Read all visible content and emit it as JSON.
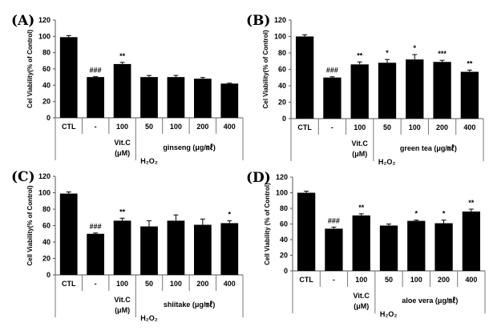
{
  "chart_data": [
    {
      "type": "bar",
      "panel_label": "(A)",
      "ylabel": "Cel Viability(% of Control)",
      "ylim": [
        0,
        120
      ],
      "yticks": [
        0,
        20,
        40,
        60,
        80,
        100,
        120
      ],
      "categories": [
        "CTL",
        "-",
        "100",
        "50",
        "100",
        "200",
        "400"
      ],
      "values": [
        99,
        50,
        66,
        50,
        50,
        48,
        42
      ],
      "errors": [
        2,
        0.5,
        2,
        2,
        2,
        1.5,
        0.5
      ],
      "annotations": [
        "",
        "###",
        "**",
        "",
        "",
        "",
        ""
      ],
      "group_labels": {
        "vitc": "Vit.C",
        "vitc_unit": "(μM)",
        "extract": "ginseng (μg/㎖)",
        "treatment": "H₂O₂"
      },
      "bar_color": "#000000"
    },
    {
      "type": "bar",
      "panel_label": "(B)",
      "ylabel": "Cel Viability(% of Control)",
      "ylim": [
        0,
        120
      ],
      "yticks": [
        0,
        20,
        40,
        60,
        80,
        100,
        120
      ],
      "categories": [
        "CTL",
        "-",
        "100",
        "50",
        "100",
        "200",
        "400"
      ],
      "values": [
        100,
        50,
        66,
        68,
        72,
        69,
        57
      ],
      "errors": [
        2,
        1,
        3,
        4,
        6,
        2,
        2
      ],
      "annotations": [
        "",
        "###",
        "**",
        "*",
        "*",
        "***",
        "**"
      ],
      "group_labels": {
        "vitc": "Vit.C",
        "vitc_unit": "(μM)",
        "extract": "green tea (μg/㎖)",
        "treatment": "H₂O₂"
      },
      "bar_color": "#000000"
    },
    {
      "type": "bar",
      "panel_label": "(C)",
      "ylabel": "Cell Viability(% of Control)",
      "ylim": [
        0,
        120
      ],
      "yticks": [
        0,
        20,
        40,
        60,
        80,
        100,
        120
      ],
      "categories": [
        "CTL",
        "-",
        "100",
        "50",
        "100",
        "200",
        "400"
      ],
      "values": [
        99,
        50,
        66,
        59,
        66,
        61,
        63
      ],
      "errors": [
        2,
        1,
        3,
        7,
        7,
        7,
        3
      ],
      "annotations": [
        "",
        "###",
        "**",
        "",
        "",
        "",
        "*"
      ],
      "group_labels": {
        "vitc": "Vit.C",
        "vitc_unit": "(μM)",
        "extract": "shiitake (μg/㎖)",
        "treatment": "H₂O₂"
      },
      "bar_color": "#000000"
    },
    {
      "type": "bar",
      "panel_label": "(D)",
      "ylabel": "Cell Viability (% of Control)",
      "ylim": [
        0,
        120
      ],
      "yticks": [
        0,
        20,
        40,
        60,
        80,
        100,
        120
      ],
      "categories": [
        "CTL",
        "-",
        "100",
        "50",
        "100",
        "200",
        "400"
      ],
      "values": [
        100,
        54,
        71,
        58,
        64,
        61,
        76
      ],
      "errors": [
        2,
        2,
        2,
        2,
        1,
        4,
        3
      ],
      "annotations": [
        "",
        "###",
        "**",
        "",
        "*",
        "*",
        "**"
      ],
      "group_labels": {
        "vitc": "Vit.C",
        "vitc_unit": "(μM)",
        "extract": "aloe vera (μg/㎖)",
        "treatment": "H₂O₂"
      },
      "bar_color": "#000000"
    }
  ]
}
